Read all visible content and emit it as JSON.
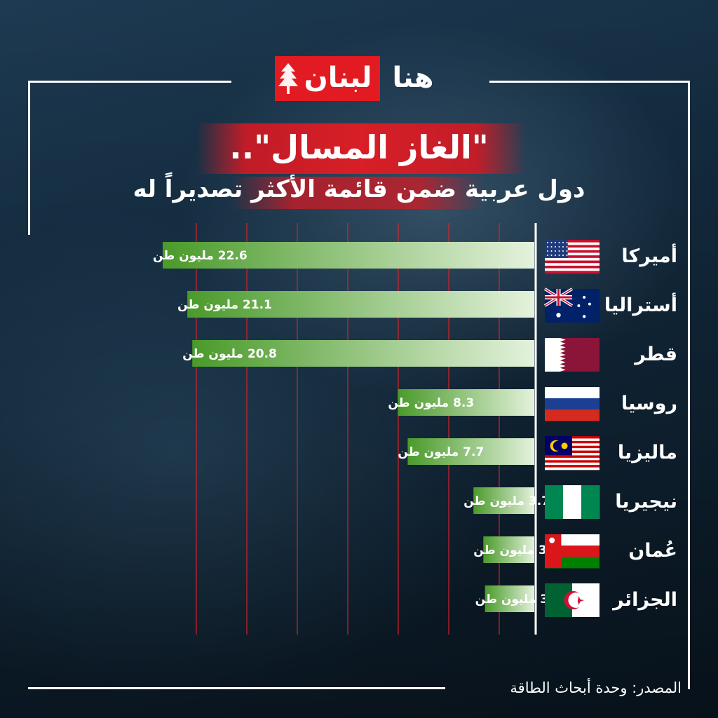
{
  "logo": {
    "red_text": "لبنان",
    "white_text": "هنا"
  },
  "title": "\"الغاز المسال\"..",
  "subtitle": "دول عربية ضمن قائمة الأكثر تصديراً له",
  "source": {
    "label": "المصدر:",
    "text": "وحدة أبحاث الطاقة"
  },
  "unit": "مليون طن",
  "colors": {
    "accent": "#e21b23",
    "bar_dark": "#4a9a2a",
    "bar_light": "#dff0d8",
    "grid": "#e0232b"
  },
  "chart_data": {
    "type": "bar",
    "orientation": "horizontal",
    "categories": [
      "أميركا",
      "أستراليا",
      "قطر",
      "روسيا",
      "ماليزيا",
      "نيجيريا",
      "عُمان",
      "الجزائر"
    ],
    "values": [
      22.6,
      21.1,
      20.8,
      8.3,
      7.7,
      3.7,
      3.1,
      3
    ],
    "value_labels": [
      "22.6 مليون طن",
      "21.1 مليون طن",
      "20.8 مليون طن",
      "8.3 مليون طن",
      "7.7 مليون طن",
      "3.7 مليون طن",
      "3.1 مليون طن",
      "3 مليون طن"
    ],
    "flags": [
      "usa-flag",
      "australia-flag",
      "qatar-flag",
      "russia-flag",
      "malaysia-flag",
      "nigeria-flag",
      "oman-flag",
      "algeria-flag"
    ],
    "title": "\"الغاز المسال\"..",
    "subtitle": "دول عربية ضمن قائمة الأكثر تصديراً له",
    "xlabel": "",
    "ylabel": "",
    "grid": true
  }
}
